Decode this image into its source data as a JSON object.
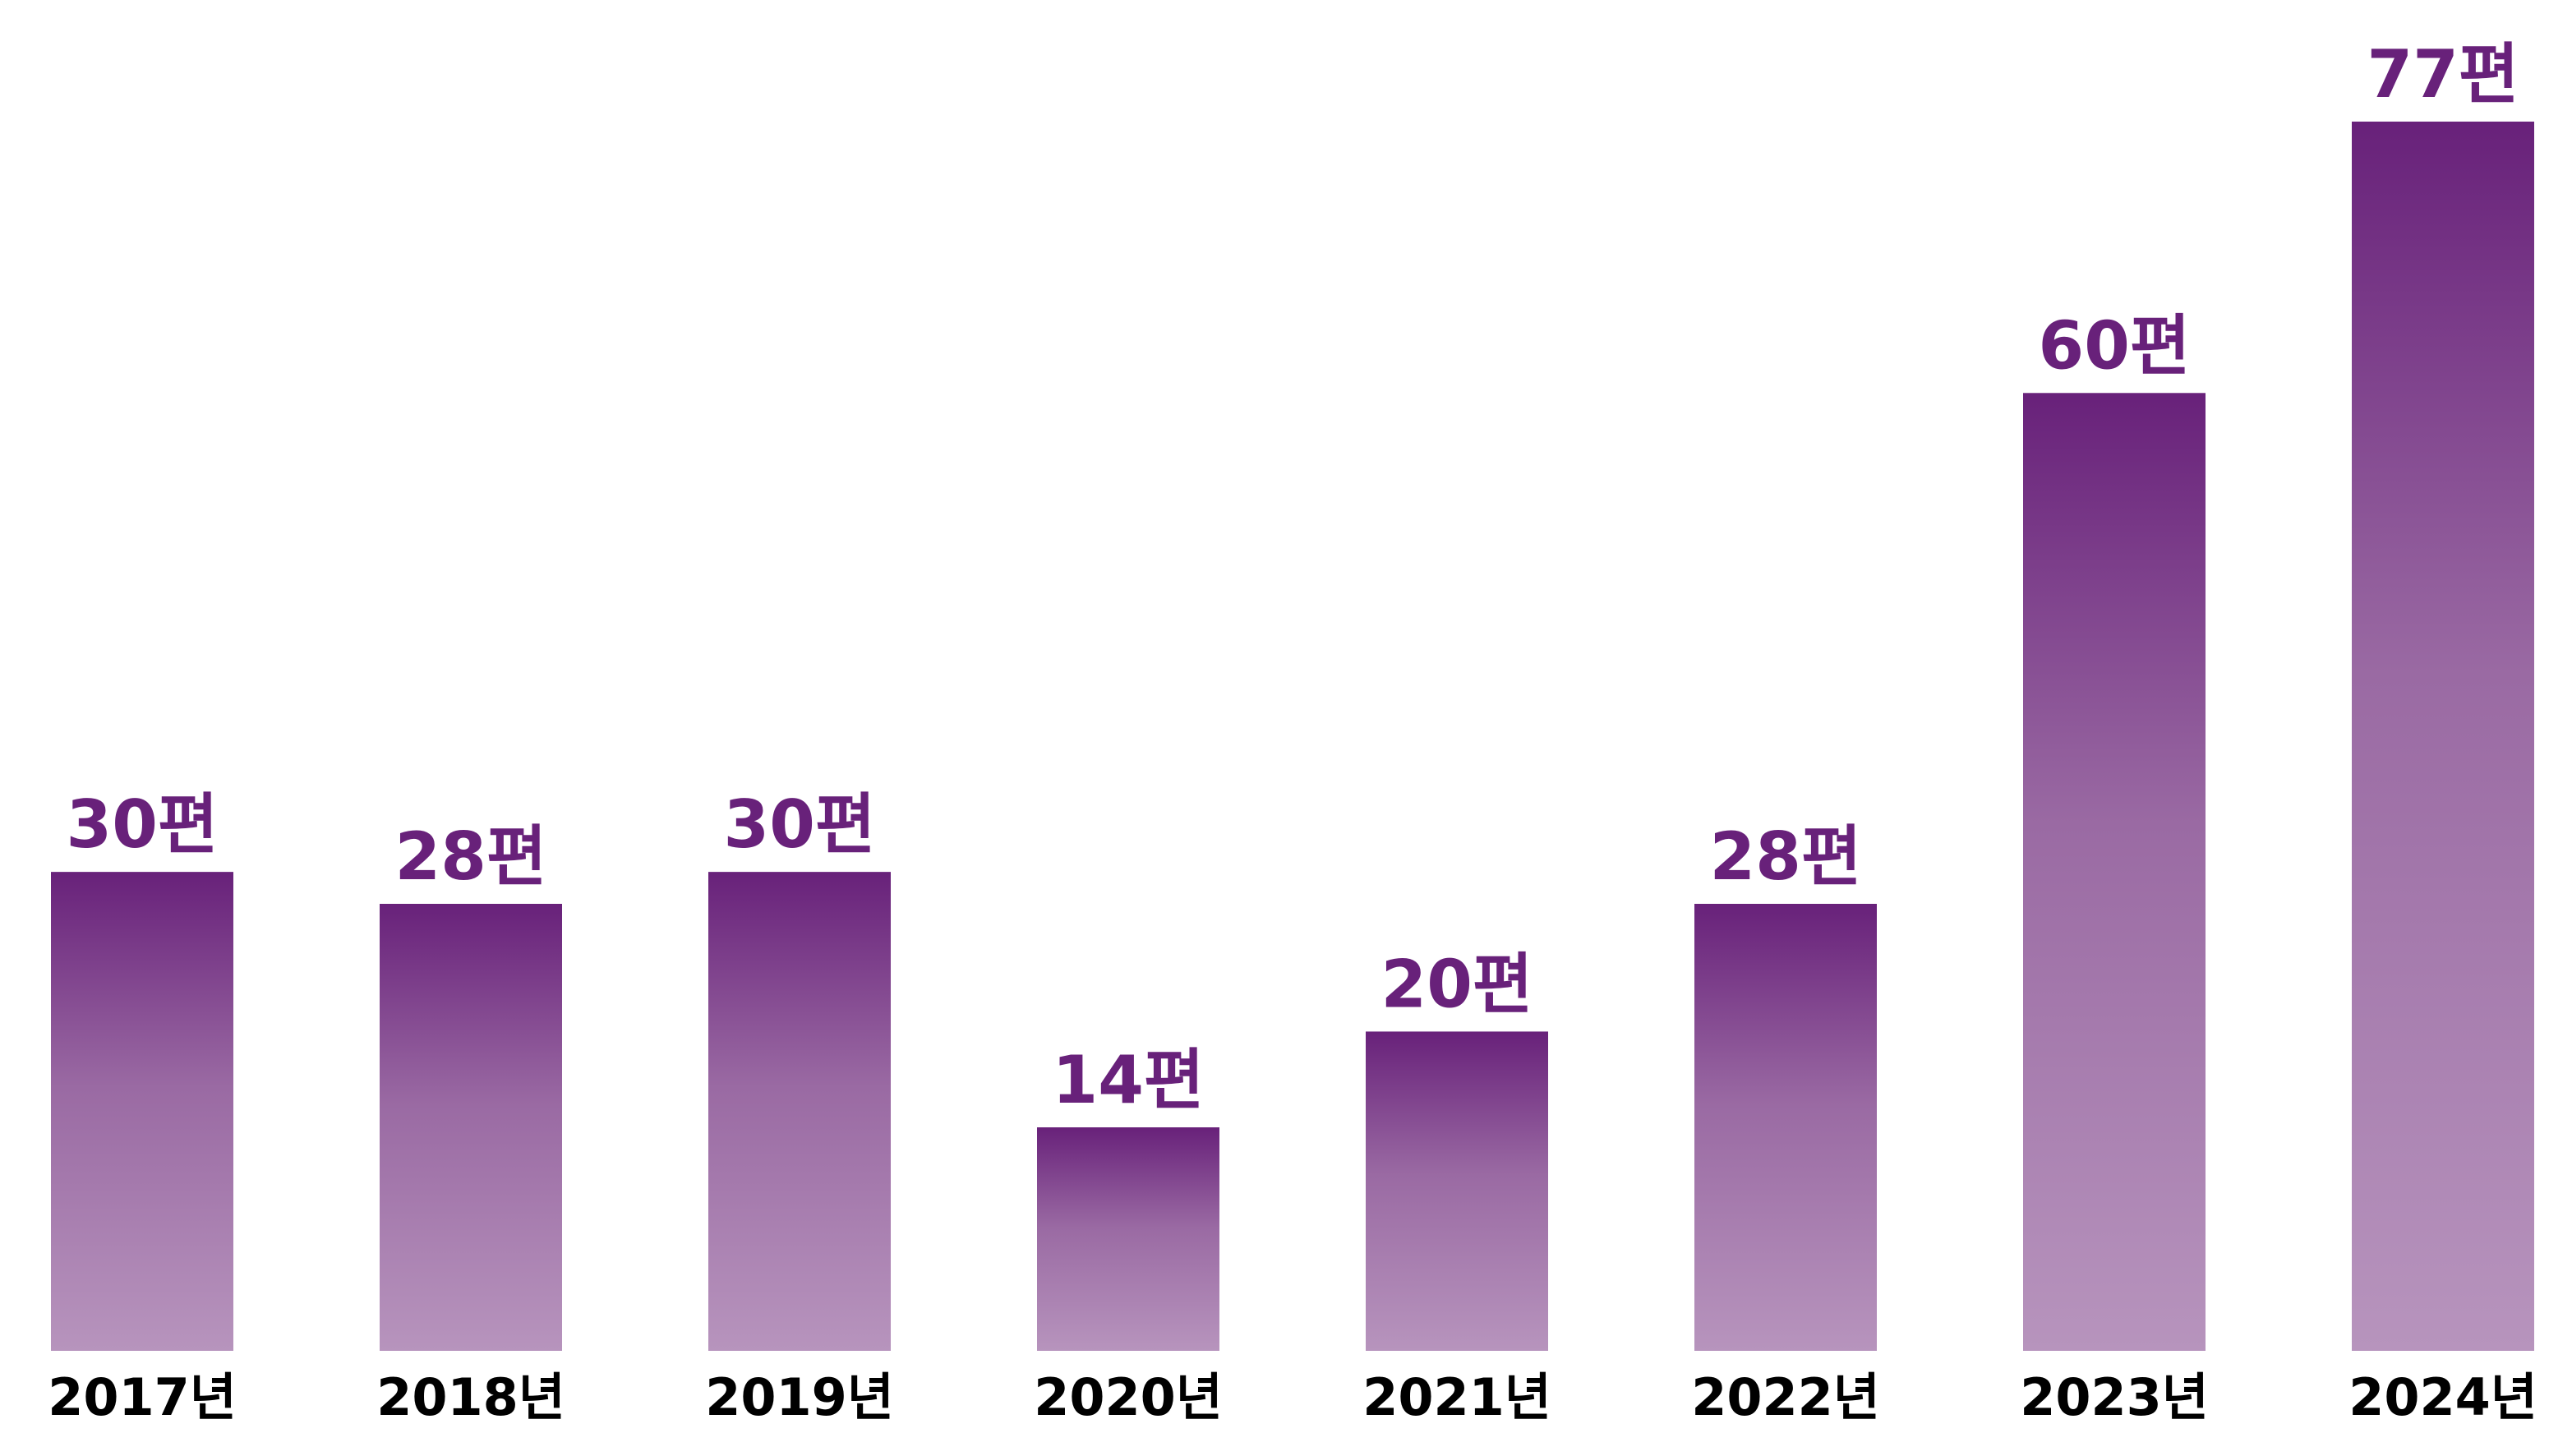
{
  "chart_data": {
    "type": "bar",
    "categories": [
      "2017년",
      "2018년",
      "2019년",
      "2020년",
      "2021년",
      "2022년",
      "2023년",
      "2024년"
    ],
    "values": [
      30,
      28,
      30,
      14,
      20,
      28,
      60,
      77
    ],
    "value_labels": [
      "30편",
      "28편",
      "30편",
      "14편",
      "20편",
      "28편",
      "60편",
      "77편"
    ],
    "title": "",
    "xlabel": "",
    "ylabel": "",
    "ylim": [
      0,
      77
    ],
    "grid": false,
    "legend": "none",
    "colors": {
      "bar_top": "#68217a",
      "bar_bottom": "#b794bd",
      "value_text": "#68217a",
      "category_text": "#000000"
    }
  }
}
